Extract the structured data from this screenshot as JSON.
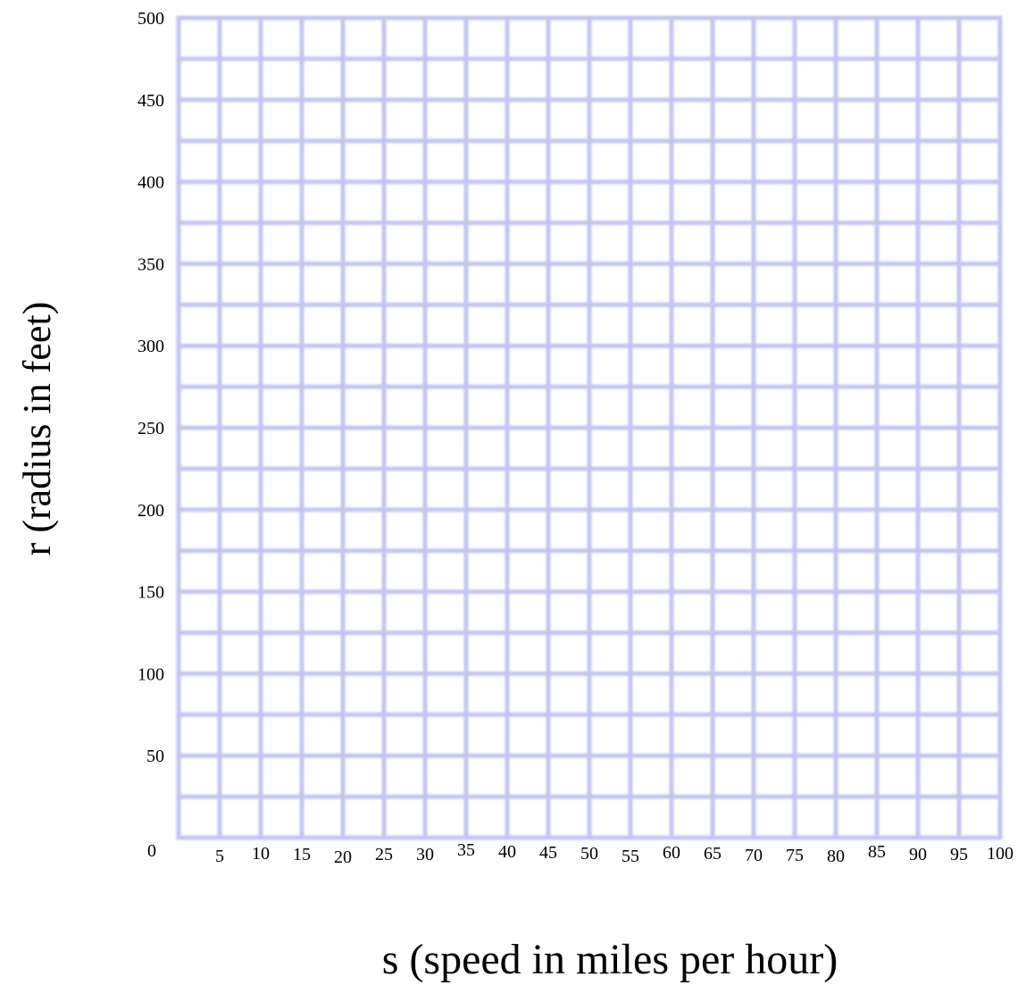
{
  "chart_data": {
    "type": "line",
    "title": "",
    "xlabel": "s (speed in miles per hour)",
    "ylabel": "r (radius in feet)",
    "xlim": [
      0,
      100
    ],
    "ylim": [
      0,
      500
    ],
    "x_ticks": [
      "0",
      "5",
      "10",
      "15",
      "20",
      "25",
      "30",
      "35",
      "40",
      "45",
      "50",
      "55",
      "60",
      "65",
      "70",
      "75",
      "80",
      "85",
      "90",
      "95",
      "100"
    ],
    "y_ticks": [
      "0",
      "50",
      "100",
      "150",
      "200",
      "250",
      "300",
      "350",
      "400",
      "450",
      "500"
    ],
    "x_tick_values": [
      0,
      5,
      10,
      15,
      20,
      25,
      30,
      35,
      40,
      45,
      50,
      55,
      60,
      65,
      70,
      75,
      80,
      85,
      90,
      95,
      100
    ],
    "y_tick_values": [
      0,
      50,
      100,
      150,
      200,
      250,
      300,
      350,
      400,
      450,
      500
    ],
    "x_grid_step": 5,
    "y_grid_step": 25,
    "grid": true,
    "grid_color": "#c5c5f5",
    "series": []
  }
}
